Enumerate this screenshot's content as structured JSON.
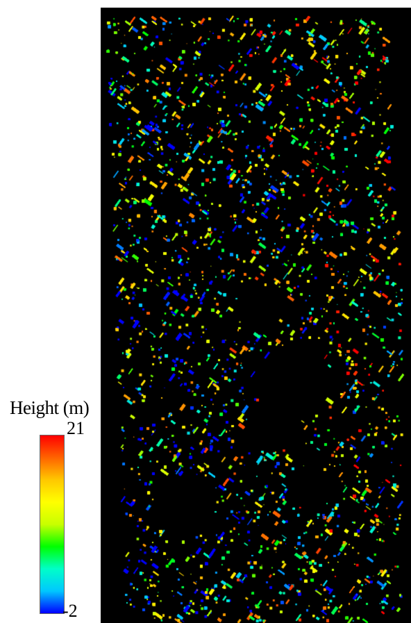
{
  "legend": {
    "title": "Height (m)",
    "max_label": "21",
    "min_label": "-2",
    "range": [
      -2,
      21
    ],
    "colormap": [
      "#0000ff",
      "#00c8ff",
      "#00ffc8",
      "#00ff00",
      "#c8ff00",
      "#ffff00",
      "#ffc800",
      "#ff6400",
      "#ff0000"
    ]
  },
  "map": {
    "background": "#000000",
    "description_colors": [
      "#0000ff",
      "#00ffff",
      "#00ff00",
      "#ffff00",
      "#ff8000",
      "#ff0000"
    ]
  }
}
